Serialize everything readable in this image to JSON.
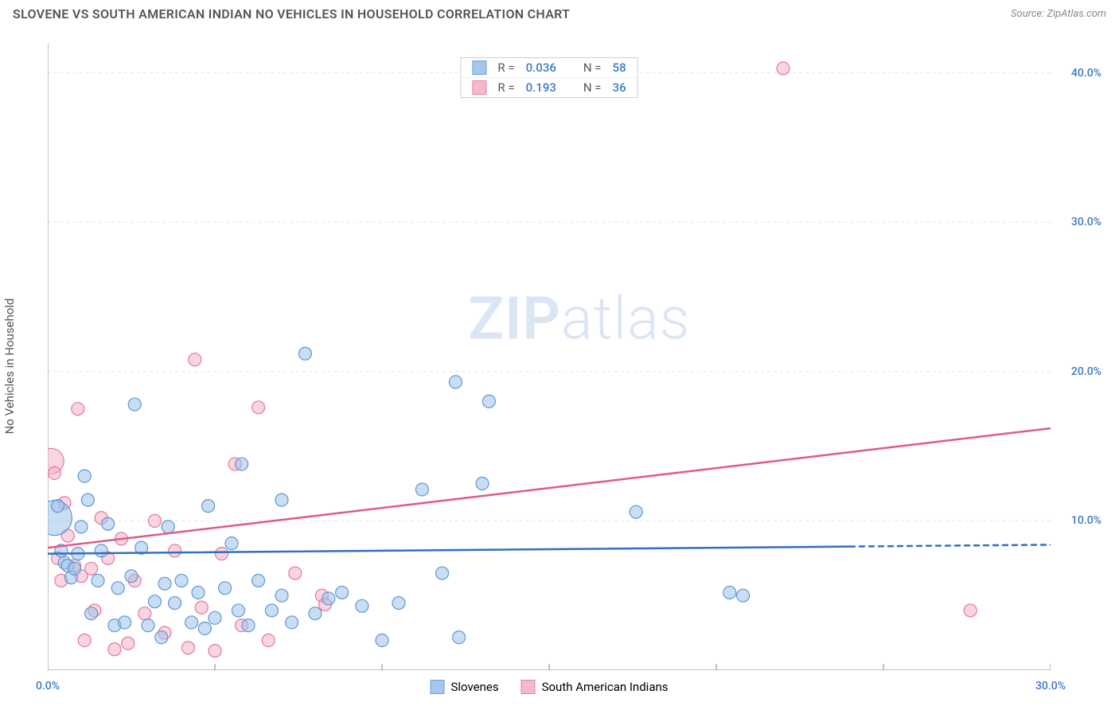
{
  "title": "SLOVENE VS SOUTH AMERICAN INDIAN NO VEHICLES IN HOUSEHOLD CORRELATION CHART",
  "source": "Source: ZipAtlas.com",
  "y_axis_label": "No Vehicles in Household",
  "watermark": {
    "text_zip": "ZIP",
    "text_atlas": "atlas",
    "color": "#dbe6f5"
  },
  "chart": {
    "type": "scatter",
    "background_color": "#ffffff",
    "axis_color": "#888888",
    "grid_color": "#e5e5e5",
    "grid_dash": "4,4",
    "tick_label_color": "#3e78c7",
    "xlim": [
      0,
      30
    ],
    "ylim": [
      0,
      42
    ],
    "x_ticks": [
      0,
      5,
      10,
      15,
      20,
      25,
      30
    ],
    "x_tick_labels": {
      "0": "0.0%",
      "30": "30.0%"
    },
    "y_ticks": [
      10,
      20,
      30,
      40
    ],
    "y_tick_labels": {
      "10": "10.0%",
      "20": "20.0%",
      "30": "30.0%",
      "40": "40.0%"
    }
  },
  "series": {
    "slovenes": {
      "label": "Slovenes",
      "fill": "#9cc2ea",
      "fill_opacity": 0.55,
      "stroke": "#5e97d6",
      "stroke_width": 1.2,
      "default_r": 8,
      "R_label": "R =",
      "R": "0.036",
      "N_label": "N =",
      "N": "58",
      "trend": {
        "color": "#2f6fc4",
        "width": 2.5,
        "y1": 7.8,
        "y2": 8.4,
        "x_solid_end": 24.0
      },
      "points": [
        {
          "x": 0.2,
          "y": 10.2,
          "r": 22
        },
        {
          "x": 0.3,
          "y": 11.0
        },
        {
          "x": 0.4,
          "y": 8.0
        },
        {
          "x": 0.5,
          "y": 7.2
        },
        {
          "x": 0.6,
          "y": 7.0
        },
        {
          "x": 0.7,
          "y": 6.2
        },
        {
          "x": 0.8,
          "y": 6.8
        },
        {
          "x": 0.9,
          "y": 7.8
        },
        {
          "x": 1.0,
          "y": 9.6
        },
        {
          "x": 1.1,
          "y": 13.0
        },
        {
          "x": 1.2,
          "y": 11.4
        },
        {
          "x": 1.3,
          "y": 3.8
        },
        {
          "x": 1.5,
          "y": 6.0
        },
        {
          "x": 1.6,
          "y": 8.0
        },
        {
          "x": 1.8,
          "y": 9.8
        },
        {
          "x": 2.0,
          "y": 3.0
        },
        {
          "x": 2.1,
          "y": 5.5
        },
        {
          "x": 2.3,
          "y": 3.2
        },
        {
          "x": 2.5,
          "y": 6.3
        },
        {
          "x": 2.6,
          "y": 17.8
        },
        {
          "x": 2.8,
          "y": 8.2
        },
        {
          "x": 3.0,
          "y": 3.0
        },
        {
          "x": 3.2,
          "y": 4.6
        },
        {
          "x": 3.4,
          "y": 2.2
        },
        {
          "x": 3.5,
          "y": 5.8
        },
        {
          "x": 3.6,
          "y": 9.6
        },
        {
          "x": 3.8,
          "y": 4.5
        },
        {
          "x": 4.0,
          "y": 6.0
        },
        {
          "x": 4.3,
          "y": 3.2
        },
        {
          "x": 4.5,
          "y": 5.2
        },
        {
          "x": 4.7,
          "y": 2.8
        },
        {
          "x": 4.8,
          "y": 11.0
        },
        {
          "x": 5.0,
          "y": 3.5
        },
        {
          "x": 5.3,
          "y": 5.5
        },
        {
          "x": 5.5,
          "y": 8.5
        },
        {
          "x": 5.7,
          "y": 4.0
        },
        {
          "x": 5.8,
          "y": 13.8
        },
        {
          "x": 6.0,
          "y": 3.0
        },
        {
          "x": 6.3,
          "y": 6.0
        },
        {
          "x": 6.7,
          "y": 4.0
        },
        {
          "x": 7.0,
          "y": 5.0
        },
        {
          "x": 7.0,
          "y": 11.4
        },
        {
          "x": 7.3,
          "y": 3.2
        },
        {
          "x": 7.7,
          "y": 21.2
        },
        {
          "x": 8.0,
          "y": 3.8
        },
        {
          "x": 8.4,
          "y": 4.8
        },
        {
          "x": 8.8,
          "y": 5.2
        },
        {
          "x": 9.4,
          "y": 4.3
        },
        {
          "x": 10.0,
          "y": 2.0
        },
        {
          "x": 10.5,
          "y": 4.5
        },
        {
          "x": 11.2,
          "y": 12.1
        },
        {
          "x": 11.8,
          "y": 6.5
        },
        {
          "x": 12.2,
          "y": 19.3
        },
        {
          "x": 12.3,
          "y": 2.2
        },
        {
          "x": 13.0,
          "y": 12.5
        },
        {
          "x": 13.2,
          "y": 18.0
        },
        {
          "x": 17.6,
          "y": 10.6
        },
        {
          "x": 20.4,
          "y": 5.2
        },
        {
          "x": 20.8,
          "y": 5.0
        }
      ]
    },
    "sai": {
      "label": "South American Indians",
      "fill": "#f4b3c4",
      "fill_opacity": 0.55,
      "stroke": "#e6779a",
      "stroke_width": 1.2,
      "default_r": 8,
      "R_label": "R =",
      "R": "0.193",
      "N_label": "N =",
      "N": "36",
      "trend": {
        "color": "#e05a86",
        "width": 2.5,
        "y1": 8.2,
        "y2": 16.2,
        "x_solid_end": 30.0
      },
      "points": [
        {
          "x": 0.1,
          "y": 14.0,
          "r": 16
        },
        {
          "x": 0.2,
          "y": 13.2
        },
        {
          "x": 0.3,
          "y": 7.5
        },
        {
          "x": 0.4,
          "y": 6.0
        },
        {
          "x": 0.5,
          "y": 11.2
        },
        {
          "x": 0.6,
          "y": 9.0
        },
        {
          "x": 0.8,
          "y": 7.0
        },
        {
          "x": 0.9,
          "y": 17.5
        },
        {
          "x": 1.0,
          "y": 6.3
        },
        {
          "x": 1.1,
          "y": 2.0
        },
        {
          "x": 1.3,
          "y": 6.8
        },
        {
          "x": 1.4,
          "y": 4.0
        },
        {
          "x": 1.6,
          "y": 10.2
        },
        {
          "x": 1.8,
          "y": 7.5
        },
        {
          "x": 2.0,
          "y": 1.4
        },
        {
          "x": 2.2,
          "y": 8.8
        },
        {
          "x": 2.4,
          "y": 1.8
        },
        {
          "x": 2.6,
          "y": 6.0
        },
        {
          "x": 2.9,
          "y": 3.8
        },
        {
          "x": 3.2,
          "y": 10.0
        },
        {
          "x": 3.5,
          "y": 2.5
        },
        {
          "x": 3.8,
          "y": 8.0
        },
        {
          "x": 4.2,
          "y": 1.5
        },
        {
          "x": 4.4,
          "y": 20.8
        },
        {
          "x": 4.6,
          "y": 4.2
        },
        {
          "x": 5.0,
          "y": 1.3
        },
        {
          "x": 5.2,
          "y": 7.8
        },
        {
          "x": 5.6,
          "y": 13.8
        },
        {
          "x": 5.8,
          "y": 3.0
        },
        {
          "x": 6.3,
          "y": 17.6
        },
        {
          "x": 6.6,
          "y": 2.0
        },
        {
          "x": 7.4,
          "y": 6.5
        },
        {
          "x": 8.2,
          "y": 5.0
        },
        {
          "x": 8.3,
          "y": 4.4
        },
        {
          "x": 22.0,
          "y": 40.3
        },
        {
          "x": 27.6,
          "y": 4.0
        }
      ]
    }
  },
  "legend_top": [
    {
      "swatch": "slovenes",
      "r_label": "R =",
      "r_val": "0.036",
      "n_label": "N =",
      "n_val": "58"
    },
    {
      "swatch": "sai",
      "r_label": "R =",
      "r_val": "0.193",
      "n_label": "N =",
      "n_val": "36"
    }
  ],
  "text_colors": {
    "title": "#555555",
    "source": "#888888",
    "axis_text": "#555555"
  }
}
